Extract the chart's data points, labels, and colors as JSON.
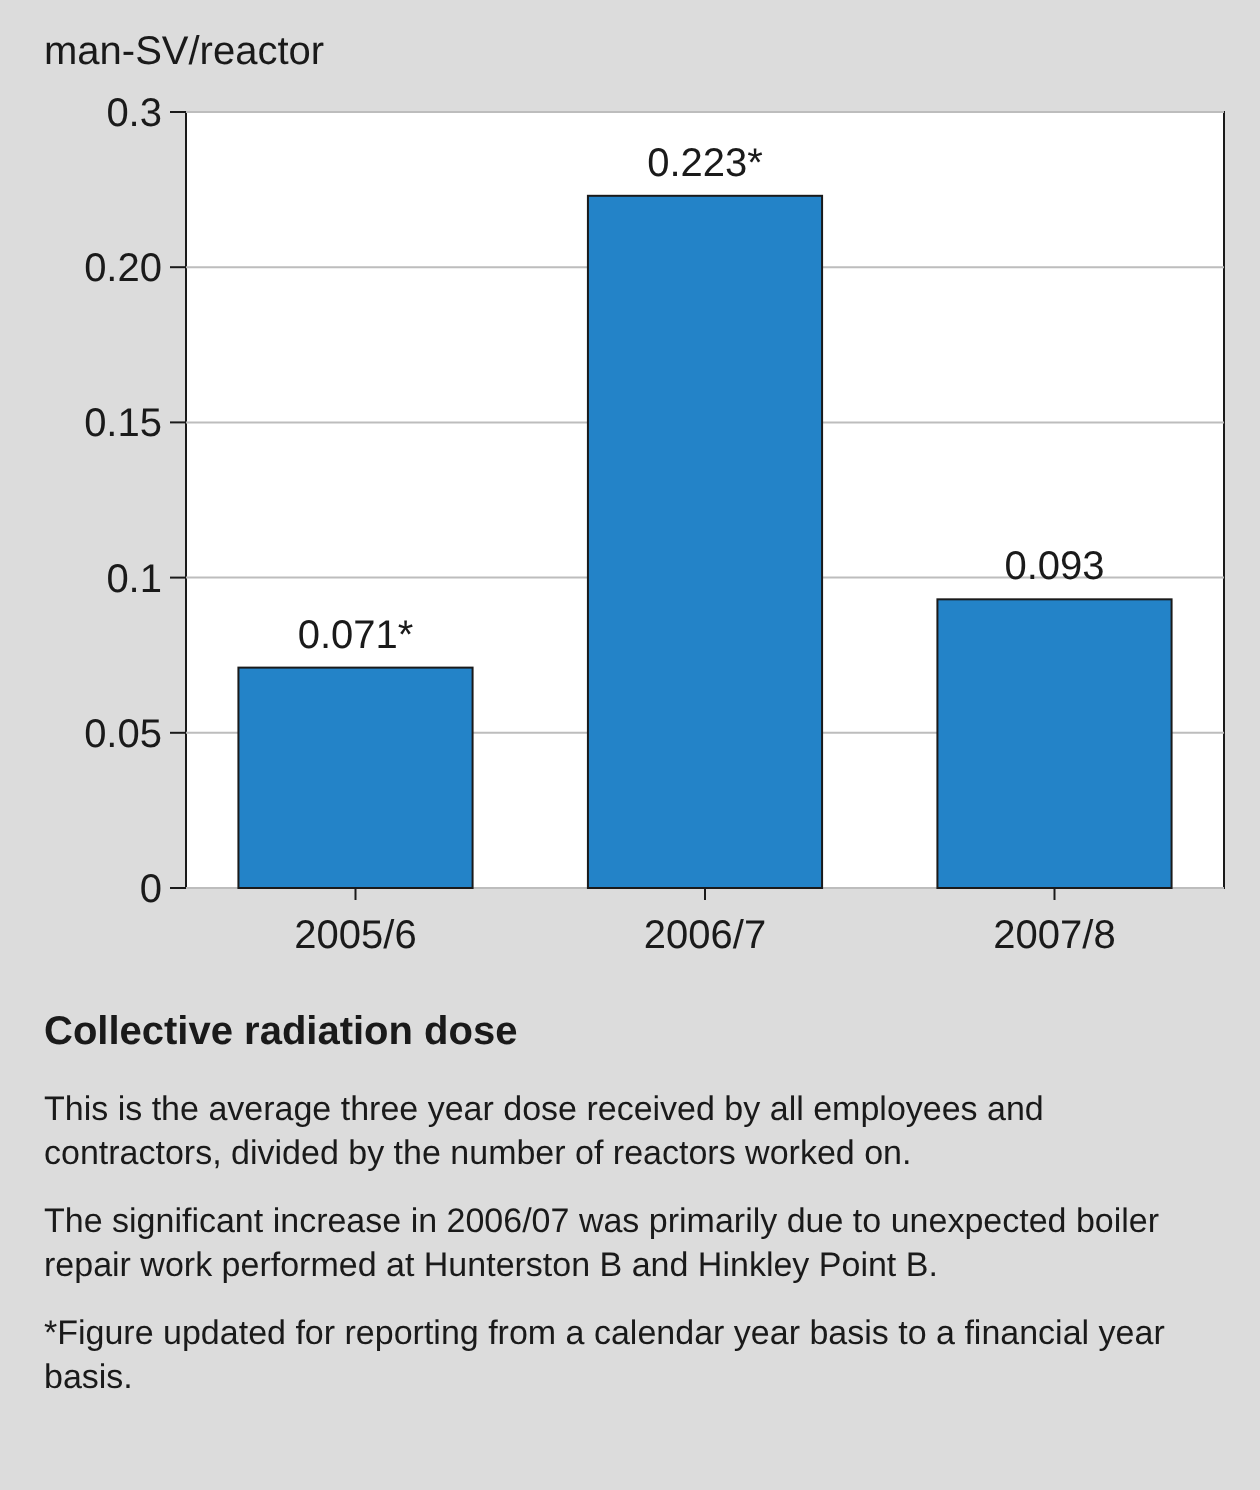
{
  "chart_data": {
    "type": "bar",
    "title": "Collective radiation dose",
    "ylabel": "man-SV/reactor",
    "categories": [
      "2005/6",
      "2006/7",
      "2007/8"
    ],
    "values": [
      0.071,
      0.223,
      0.093
    ],
    "value_labels": [
      "0.071*",
      "0.223*",
      "0.093"
    ],
    "color": "#2383c8",
    "ylim": [
      0,
      0.25
    ],
    "yticks": [
      0,
      0.05,
      0.1,
      0.15,
      {
        "value": 0.2,
        "label": "0.20"
      },
      {
        "value": 0.25,
        "label": "0.3"
      }
    ],
    "grid": "y",
    "annotations": [
      "This is the average three year dose received by all employees and contractors, divided by the number of reactors worked on.",
      "The significant increase in 2006/07 was primarily due to unexpected boiler repair work performed at Hunterston B and Hinkley Point B.",
      "*Figure updated for reporting from a calendar year basis to a financial year basis."
    ]
  }
}
